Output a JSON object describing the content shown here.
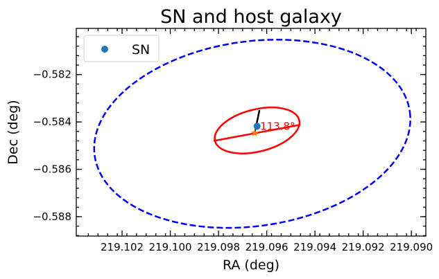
{
  "chart_data": {
    "type": "scatter",
    "title": "SN and host galaxy",
    "xlabel": "RA (deg)",
    "ylabel": "Dec (deg)",
    "xlim": [
      219.1039,
      219.0894
    ],
    "ylim": [
      -0.58882,
      -0.58005
    ],
    "x_inverted": true,
    "x_ticks": [
      219.102,
      219.1,
      219.098,
      219.096,
      219.094,
      219.092,
      219.09
    ],
    "x_tick_labels": [
      "219.102",
      "219.100",
      "219.098",
      "219.096",
      "219.094",
      "219.092",
      "219.090"
    ],
    "y_ticks": [
      -0.582,
      -0.584,
      -0.586,
      -0.588
    ],
    "y_tick_labels": [
      "−0.582",
      "−0.584",
      "−0.586",
      "−0.588"
    ],
    "legend": {
      "position": "top-left",
      "entries": [
        {
          "label": "SN",
          "color": "#1f77b4",
          "marker": "circle"
        }
      ]
    },
    "sn_point": {
      "label": "SN",
      "ra": 219.0964,
      "dec": -0.58418,
      "color": "#1f77b4"
    },
    "host_center": {
      "ra": 219.0965,
      "dec": -0.58447,
      "color": "#ff7f0e",
      "marker": "star"
    },
    "inner_ellipse": {
      "center": [
        219.0964,
        -0.58447
      ],
      "ra_extent": [
        219.0982,
        219.0946
      ],
      "dec_extent": [
        -0.58525,
        -0.58347
      ],
      "color": "#ff0000",
      "style": "solid"
    },
    "outer_ellipse": {
      "center": [
        219.0967,
        -0.5845
      ],
      "ra_extent": [
        219.1032,
        219.09
      ],
      "dec_extent": [
        -0.5884,
        -0.5806
      ],
      "color": "#0000ff",
      "style": "dashed"
    },
    "major_axis_line": {
      "points": [
        [
          219.0982,
          -0.5848
        ],
        [
          219.0946,
          -0.58412
        ]
      ],
      "color": "#ff0000"
    },
    "sn_vector_line": {
      "points": [
        [
          219.0965,
          -0.58447
        ],
        [
          219.0963,
          -0.5835
        ]
      ],
      "color": "#000000"
    },
    "annotation": {
      "text": "113.8°",
      "ra": 219.0963,
      "dec": -0.58418,
      "color": "#ff0000"
    }
  }
}
